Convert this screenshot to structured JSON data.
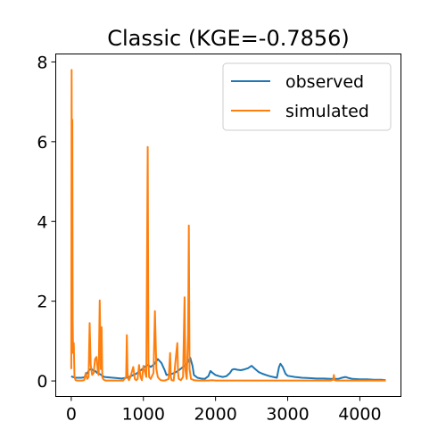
{
  "chart_data": {
    "type": "line",
    "title": "Classic (KGE=-0.7856)",
    "xlabel": "",
    "ylabel": "",
    "xlim": [
      -215,
      4570
    ],
    "ylim": [
      -0.39,
      8.2
    ],
    "xticks": [
      0,
      1000,
      2000,
      3000,
      4000
    ],
    "yticks": [
      0,
      2,
      4,
      6,
      8
    ],
    "grid": false,
    "legend": {
      "position": "top-right"
    },
    "colors": {
      "observed": "#1f77b4",
      "simulated": "#ff7f0e"
    },
    "series": [
      {
        "name": "observed",
        "color": "#1f77b4",
        "x": [
          0,
          20,
          60,
          100,
          140,
          180,
          200,
          230,
          250,
          280,
          300,
          330,
          360,
          400,
          430,
          460,
          700,
          760,
          800,
          850,
          900,
          950,
          1000,
          1050,
          1080,
          1100,
          1150,
          1200,
          1250,
          1300,
          1320,
          1400,
          1450,
          1500,
          1550,
          1600,
          1620,
          1650,
          1680,
          1700,
          1750,
          1800,
          1850,
          1900,
          1930,
          1960,
          2000,
          2050,
          2100,
          2150,
          2200,
          2230,
          2260,
          2300,
          2350,
          2400,
          2450,
          2500,
          2550,
          2600,
          2650,
          2700,
          2750,
          2800,
          2850,
          2880,
          2900,
          2930,
          2970,
          3000,
          3100,
          3200,
          3300,
          3400,
          3500,
          3600,
          3650,
          3700,
          3750,
          3800,
          3850,
          3900,
          4000,
          4100,
          4200,
          4300,
          4360
        ],
        "y": [
          0.12,
          0.1,
          0.08,
          0.08,
          0.08,
          0.09,
          0.15,
          0.22,
          0.28,
          0.3,
          0.27,
          0.25,
          0.2,
          0.17,
          0.13,
          0.1,
          0.06,
          0.08,
          0.1,
          0.14,
          0.18,
          0.25,
          0.32,
          0.4,
          0.38,
          0.35,
          0.42,
          0.55,
          0.45,
          0.25,
          0.15,
          0.18,
          0.22,
          0.28,
          0.35,
          0.42,
          0.5,
          0.58,
          0.38,
          0.15,
          0.08,
          0.06,
          0.05,
          0.12,
          0.25,
          0.2,
          0.15,
          0.12,
          0.1,
          0.12,
          0.2,
          0.28,
          0.3,
          0.28,
          0.27,
          0.29,
          0.32,
          0.38,
          0.3,
          0.22,
          0.18,
          0.15,
          0.12,
          0.1,
          0.08,
          0.35,
          0.43,
          0.35,
          0.18,
          0.13,
          0.1,
          0.08,
          0.07,
          0.06,
          0.06,
          0.05,
          0.05,
          0.05,
          0.08,
          0.1,
          0.07,
          0.05,
          0.04,
          0.04,
          0.03,
          0.03,
          0.02
        ]
      },
      {
        "name": "simulated",
        "color": "#ff7f0e",
        "x": [
          0,
          5,
          10,
          15,
          20,
          25,
          35,
          45,
          60,
          80,
          100,
          150,
          180,
          200,
          220,
          240,
          255,
          270,
          290,
          310,
          330,
          350,
          370,
          380,
          395,
          410,
          420,
          430,
          440,
          460,
          480,
          500,
          560,
          620,
          680,
          720,
          760,
          770,
          780,
          790,
          800,
          820,
          860,
          880,
          900,
          920,
          940,
          960,
          980,
          1000,
          1040,
          1060,
          1070,
          1080,
          1100,
          1140,
          1160,
          1180,
          1200,
          1220,
          1240,
          1270,
          1300,
          1350,
          1370,
          1380,
          1390,
          1420,
          1450,
          1470,
          1480,
          1490,
          1520,
          1550,
          1570,
          1580,
          1600,
          1620,
          1630,
          1640,
          1660,
          1700,
          1750,
          1900,
          1950,
          2000,
          2100,
          2200,
          2300,
          2400,
          2500,
          2600,
          2700,
          2800,
          2900,
          3000,
          3300,
          3600,
          3630,
          3640,
          3650,
          3670,
          3700,
          3900,
          4000,
          4100,
          4200,
          4300,
          4360
        ],
        "y": [
          0.3,
          7.8,
          4.0,
          6.55,
          1.5,
          0.7,
          0.95,
          0.1,
          0.02,
          0.01,
          0.01,
          0.01,
          0.02,
          0.2,
          0.05,
          0.1,
          1.45,
          0.4,
          0.15,
          0.2,
          0.55,
          0.6,
          0.2,
          0.15,
          2.02,
          0.3,
          1.35,
          0.1,
          0.05,
          0.02,
          0.01,
          0.01,
          0.01,
          0.01,
          0.01,
          0.01,
          0.1,
          1.15,
          0.2,
          0.05,
          0.02,
          0.1,
          0.35,
          0.05,
          0.02,
          0.05,
          0.4,
          0.1,
          0.02,
          0.38,
          0.1,
          5.87,
          0.5,
          0.1,
          0.05,
          0.2,
          1.75,
          0.3,
          0.1,
          0.05,
          0.02,
          0.01,
          0.01,
          0.05,
          0.7,
          0.1,
          0.02,
          0.01,
          0.6,
          0.95,
          0.2,
          0.05,
          0.02,
          0.1,
          2.1,
          0.3,
          0.05,
          1.2,
          3.9,
          0.3,
          0.05,
          0.02,
          0.01,
          0.01,
          0.02,
          0.01,
          0.01,
          0.01,
          0.01,
          0.01,
          0.01,
          0.01,
          0.01,
          0.01,
          0.01,
          0.01,
          0.01,
          0.01,
          0.03,
          0.15,
          0.02,
          0.01,
          0.01,
          0.01,
          0.01,
          0.01,
          0.01,
          0.01,
          0.01
        ]
      }
    ]
  }
}
